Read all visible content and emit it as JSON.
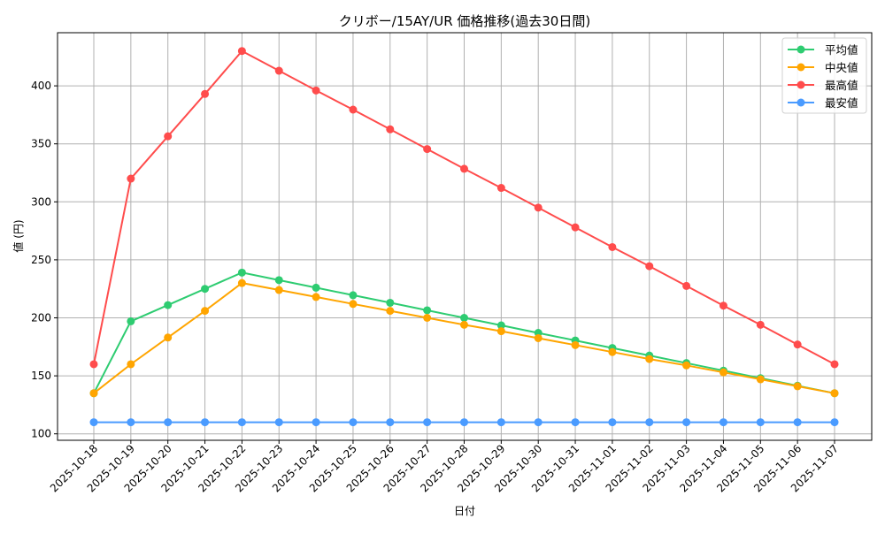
{
  "chart_data": {
    "type": "line",
    "title": "クリボー/15AY/UR 価格推移(過去30日間)",
    "xlabel": "日付",
    "ylabel": "値 (円)",
    "ylim": [
      94,
      442
    ],
    "yticks": [
      100,
      150,
      200,
      250,
      300,
      350,
      400
    ],
    "grid": true,
    "legend_position": "upper right",
    "categories": [
      "2025-10-18",
      "2025-10-19",
      "2025-10-20",
      "2025-10-21",
      "2025-10-22",
      "2025-10-23",
      "2025-10-24",
      "2025-10-25",
      "2025-10-26",
      "2025-10-27",
      "2025-10-28",
      "2025-10-29",
      "2025-10-30",
      "2025-10-31",
      "2025-11-01",
      "2025-11-02",
      "2025-11-03",
      "2025-11-04",
      "2025-11-05",
      "2025-11-06",
      "2025-11-07"
    ],
    "series": [
      {
        "name": "平均値",
        "color": "#2ecc71",
        "values": [
          135,
          197,
          211,
          225,
          239,
          232.5,
          226,
          219.5,
          213,
          206.5,
          200,
          193.5,
          187,
          180.5,
          174,
          167.5,
          161,
          154.5,
          148,
          141.5,
          135
        ]
      },
      {
        "name": "中央値",
        "color": "#ffa500",
        "values": [
          135,
          160,
          183,
          206,
          230,
          224,
          218,
          212,
          206,
          200,
          194,
          188.5,
          182.5,
          176.5,
          170.5,
          164.5,
          159,
          153,
          147,
          141,
          135
        ]
      },
      {
        "name": "最高値",
        "color": "#ff4c4c",
        "values": [
          160,
          320,
          356.5,
          393,
          430,
          413,
          396,
          379.5,
          362.5,
          345.5,
          328.5,
          312,
          295,
          278,
          261,
          244.5,
          227.5,
          210.5,
          194,
          177,
          160
        ]
      },
      {
        "name": "最安値",
        "color": "#4a9bff",
        "values": [
          110,
          110,
          110,
          110,
          110,
          110,
          110,
          110,
          110,
          110,
          110,
          110,
          110,
          110,
          110,
          110,
          110,
          110,
          110,
          110,
          110
        ]
      }
    ]
  }
}
